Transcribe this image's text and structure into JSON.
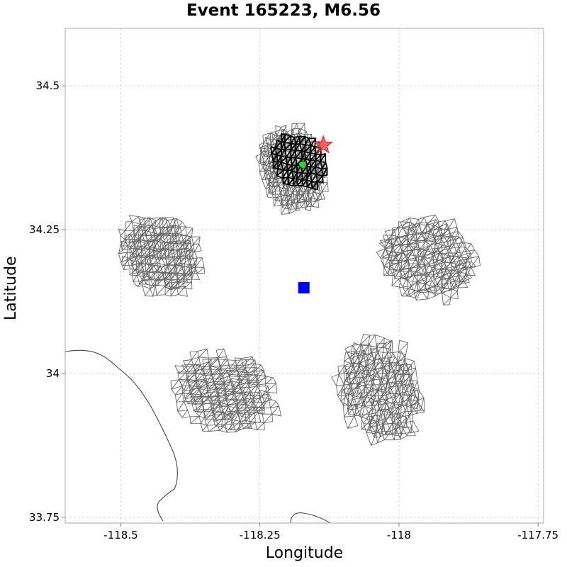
{
  "chart_data": {
    "type": "map",
    "title": "Event 165223, M6.56",
    "xlabel": "Longitude",
    "ylabel": "Latitude",
    "xlim": [
      -118.6,
      -117.74
    ],
    "ylim": [
      33.74,
      34.6
    ],
    "xticks": [
      -118.5,
      -118.25,
      -118,
      -117.75
    ],
    "yticks": [
      33.75,
      34,
      34.25,
      34.5
    ],
    "xtick_labels": [
      "-118.5",
      "-118.25",
      "-118",
      "-117.75"
    ],
    "ytick_labels": [
      "33.75",
      "34",
      "34.25",
      "34.5"
    ],
    "grid": true,
    "colors": {
      "fault_mesh": "#666666",
      "rupture_mesh": "#000000",
      "hypocenter_star": "#e03030",
      "centroid_marker": "#22dd22",
      "site_marker": "#0000ff",
      "coastline": "#444444"
    },
    "markers": [
      {
        "name": "hypocenter",
        "shape": "star",
        "lon": -118.136,
        "lat": 34.397
      },
      {
        "name": "centroid",
        "shape": "circle",
        "lon": -118.173,
        "lat": 34.363
      },
      {
        "name": "site",
        "shape": "square",
        "lon": -118.171,
        "lat": 34.149
      }
    ],
    "fault_patches": [
      {
        "name": "north",
        "lon": [
          -118.245,
          -118.12
        ],
        "lat": [
          34.28,
          34.44
        ]
      },
      {
        "name": "west",
        "lon": [
          -118.5,
          -118.35
        ],
        "lat": [
          34.13,
          34.27
        ]
      },
      {
        "name": "east",
        "lon": [
          -118.04,
          -117.86
        ],
        "lat": [
          34.13,
          34.28
        ]
      },
      {
        "name": "southwest",
        "lon": [
          -118.4,
          -118.22
        ],
        "lat": [
          33.9,
          34.04
        ]
      },
      {
        "name": "southeast",
        "lon": [
          -118.12,
          -117.96
        ],
        "lat": [
          33.88,
          34.07
        ]
      }
    ],
    "rupture_patch": {
      "lon": [
        -118.235,
        -118.12
      ],
      "lat": [
        34.31,
        34.41
      ]
    }
  }
}
